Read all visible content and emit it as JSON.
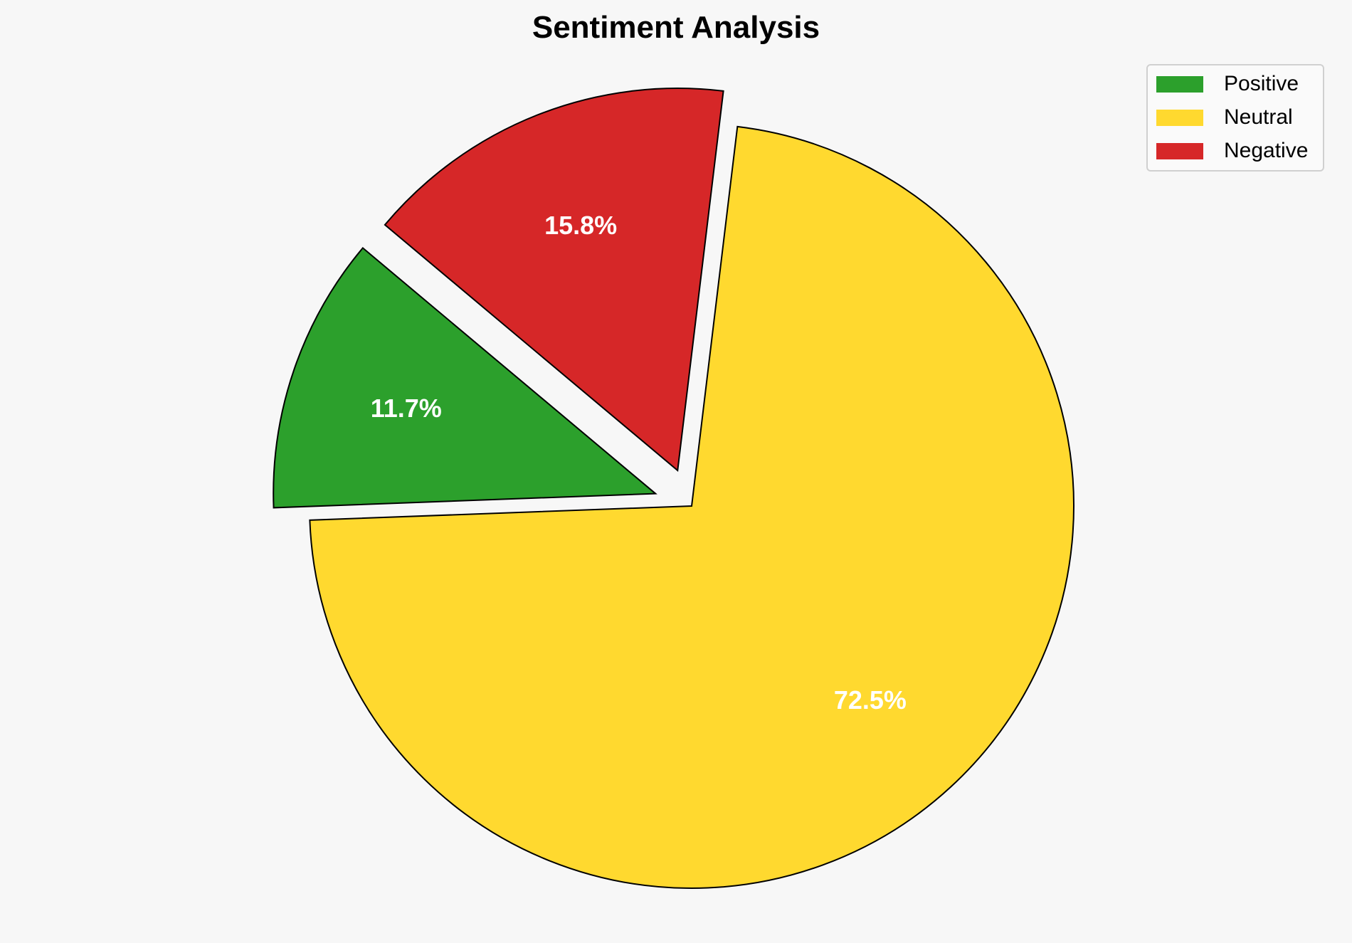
{
  "chart_data": {
    "type": "pie",
    "title": "Sentiment Analysis",
    "categories": [
      "Positive",
      "Neutral",
      "Negative"
    ],
    "values": [
      11.7,
      72.5,
      15.8
    ],
    "labels": [
      "11.7%",
      "72.5%",
      "15.8%"
    ],
    "colors": [
      "#2ca02c",
      "#ffd92f",
      "#d62728"
    ],
    "explode": [
      0.1,
      0,
      0.1
    ],
    "start_angle": 140,
    "direction": "counterclockwise",
    "legend_position": "top-right",
    "edge_color": "#000000",
    "label_color": "#ffffff"
  }
}
